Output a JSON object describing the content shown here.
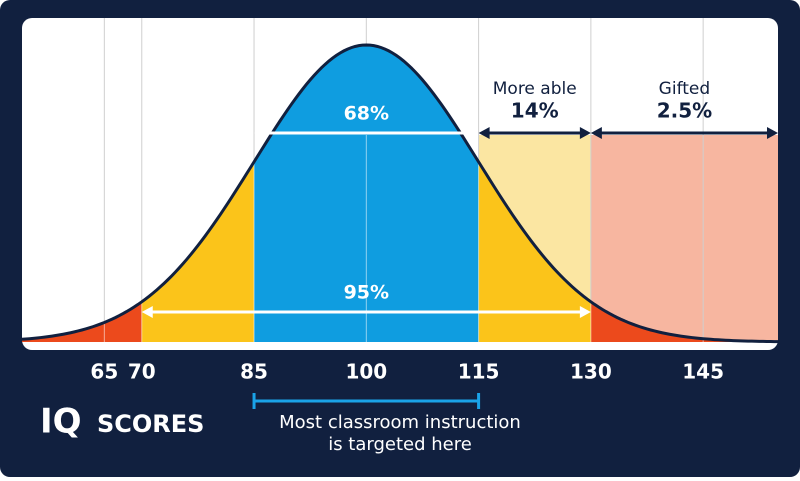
{
  "chart_data": {
    "type": "bell",
    "xlim": [
      54,
      155
    ],
    "xticks": [
      65,
      70,
      85,
      100,
      115,
      130,
      145
    ],
    "grid": true,
    "bands": [
      {
        "range": [
          85,
          115
        ],
        "value": 68,
        "label": "68%",
        "color": "#0f9de0"
      },
      {
        "range": [
          70,
          130
        ],
        "value": 95,
        "label": "95%",
        "color": "#fbc41a"
      }
    ],
    "tail_color": "#ec4a1c",
    "groups": [
      {
        "name": "More able",
        "range": [
          115,
          130
        ],
        "value": 14,
        "label": "14%",
        "color": "#fbe6a2"
      },
      {
        "name": "Gifted",
        "range": [
          130,
          155
        ],
        "value": 2.5,
        "label": "2.5%",
        "color": "#f7b6a0"
      }
    ],
    "axis_title": {
      "main": "IQ",
      "rest": "SCORES"
    },
    "note": {
      "lines": [
        "Most classroom instruction",
        "is targeted here"
      ],
      "range": [
        85,
        115
      ]
    }
  }
}
